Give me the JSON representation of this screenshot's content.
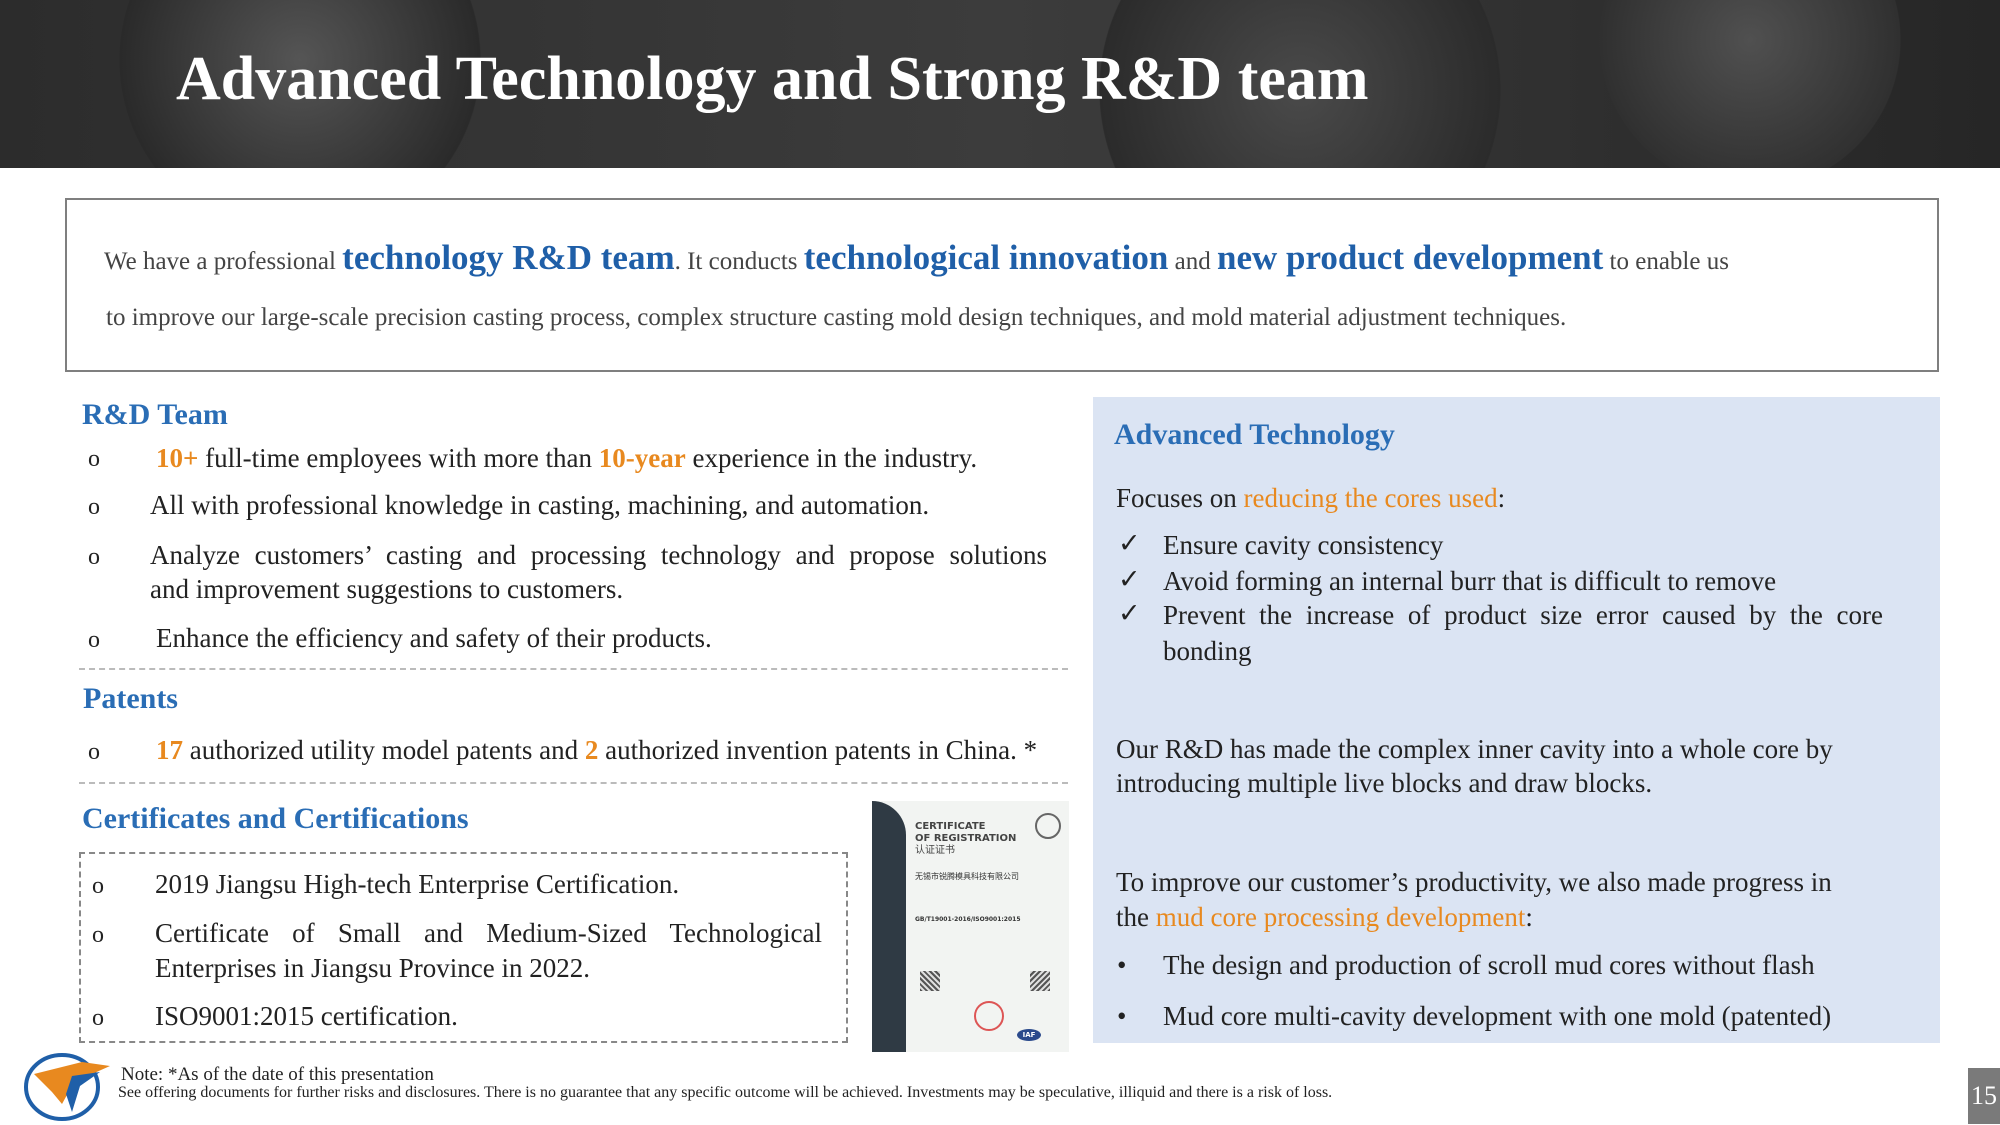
{
  "header": {
    "title": "Advanced Technology and Strong R&D team"
  },
  "intro": {
    "p1": "We have a professional ",
    "k1": "technology R&D team",
    "p2": ". It conducts ",
    "k2": "technological innovation",
    "p3": " and ",
    "k3": "new product development",
    "p4": " to enable us",
    "line2": "to improve our large-scale precision casting process, complex structure casting mold design techniques, and mold material adjustment techniques."
  },
  "rd_team": {
    "heading": "R&D Team",
    "bullet": "o",
    "item1": {
      "n1": "10+",
      "t1": " full-time employees with more than ",
      "n2": "10-year",
      "t2": " experience in the industry."
    },
    "item2": "All with professional knowledge in casting, machining, and automation.",
    "item3a": "Analyze customers’ casting and processing technology and propose solutions",
    "item3b": "and improvement suggestions to customers.",
    "item4": "Enhance the efficiency and safety of their products."
  },
  "patents": {
    "heading": "Patents",
    "n1": "17",
    "t1": " authorized utility model patents and ",
    "n2": "2",
    "t2": " authorized invention patents in China. *"
  },
  "certs": {
    "heading": "Certificates and Certifications",
    "item1": "2019 Jiangsu High-tech Enterprise Certification.",
    "item2a": "Certificate of Small and Medium-Sized Technological",
    "item2b": "Enterprises in Jiangsu Province in 2022.",
    "item3": "ISO9001:2015 certification.",
    "image": {
      "line1": "CERTIFICATE",
      "line2": "OF REGISTRATION",
      "line3": "认证证书",
      "company": "无锡市锐腾模具科技有限公司",
      "standard": "GB/T19001-2016/ISO9001:2015",
      "badge": "IAF"
    }
  },
  "advanced": {
    "heading": "Advanced Technology",
    "focus_pre": "Focuses on ",
    "focus_hl": "reducing the cores used",
    "focus_post": ":",
    "check": "✓",
    "c1": "Ensure cavity consistency",
    "c2": "Avoid forming an internal burr that is difficult to remove",
    "c3a": "Prevent the increase of product size error caused by the core",
    "c3b": "bonding",
    "para1a": "Our R&D has made the complex inner cavity into a whole core by",
    "para1b": "introducing multiple live blocks and draw blocks.",
    "para2a": "To improve our customer’s productivity, we also made progress in",
    "para2b_pre": "the ",
    "para2b_hl": "mud core processing development",
    "para2b_post": ":",
    "dot": "•",
    "b1": "The design and production of scroll mud cores without flash",
    "b2": "Mud core multi-cavity development with one mold (patented)"
  },
  "footer": {
    "note": "Note: *As of the date of this presentation",
    "disclaimer": "See offering documents for further risks and disclosures. There is no guarantee that any specific outcome will be achieved. Investments may be speculative, illiquid and there is a risk of loss.",
    "page": "15"
  },
  "colors": {
    "heading_blue": "#2a6db5",
    "accent_orange": "#e8891f",
    "panel_bg": "#dbe4f3"
  }
}
